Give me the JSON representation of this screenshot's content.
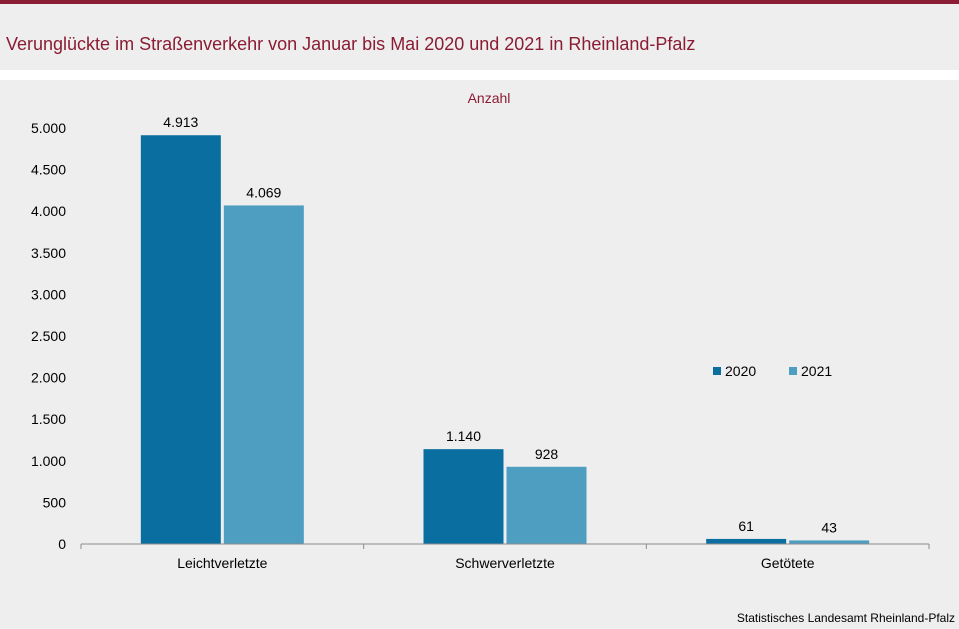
{
  "header": {
    "title": "Verunglückte im Straßenverkehr von Januar bis Mai 2020 und 2021 in Rheinland-Pfalz"
  },
  "footer": {
    "source": "Statistisches Landesamt Rheinland-Pfalz"
  },
  "colors": {
    "accent": "#8a1c33",
    "series_2020": "#0a6fa0",
    "series_2021": "#4e9ec2",
    "background": "#eeeeee"
  },
  "chart_data": {
    "type": "bar",
    "title": "Verunglückte im Straßenverkehr von Januar bis Mai 2020 und 2021 in Rheinland-Pfalz",
    "ylabel": "Anzahl",
    "xlabel": "",
    "categories": [
      "Leichtverletzte",
      "Schwerverletzte",
      "Getötete"
    ],
    "series": [
      {
        "name": "2020",
        "values": [
          4913,
          1140,
          61
        ],
        "labels": [
          "4.913",
          "1.140",
          "61"
        ]
      },
      {
        "name": "2021",
        "values": [
          4069,
          928,
          43
        ],
        "labels": [
          "4.069",
          "928",
          "43"
        ]
      }
    ],
    "ylim": [
      0,
      5000
    ],
    "yticks": [
      {
        "value": 0,
        "label": "0"
      },
      {
        "value": 500,
        "label": "500"
      },
      {
        "value": 1000,
        "label": "1.000"
      },
      {
        "value": 1500,
        "label": "1.500"
      },
      {
        "value": 2000,
        "label": "2.000"
      },
      {
        "value": 2500,
        "label": "2.500"
      },
      {
        "value": 3000,
        "label": "3.000"
      },
      {
        "value": 3500,
        "label": "3.500"
      },
      {
        "value": 4000,
        "label": "4.000"
      },
      {
        "value": 4500,
        "label": "4.500"
      },
      {
        "value": 5000,
        "label": "5.000"
      }
    ],
    "grid": false,
    "legend_position": "right"
  }
}
